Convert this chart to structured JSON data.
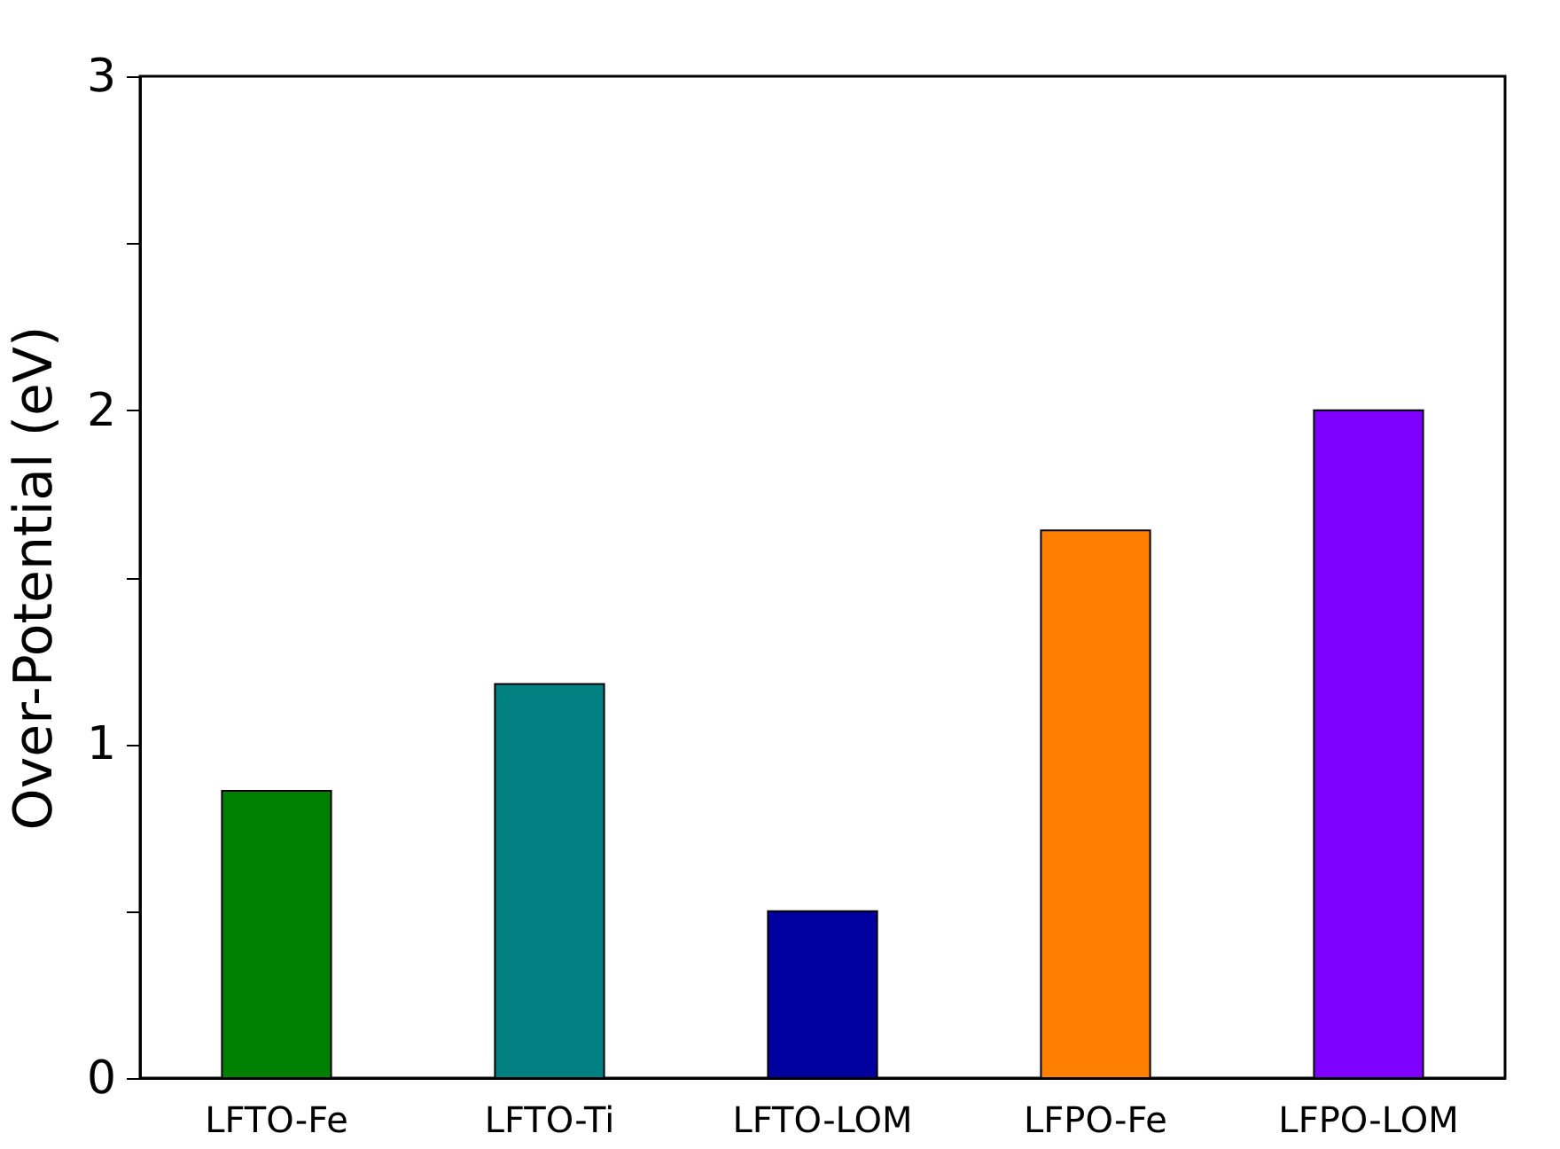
{
  "chart_data": {
    "type": "bar",
    "ylabel": "Over-Potential (eV)",
    "categories": [
      "LFTO-Fe",
      "LFTO-Ti",
      "LFTO-LOM",
      "LFPO-Fe",
      "LFPO-LOM"
    ],
    "values": [
      0.86,
      1.18,
      0.5,
      1.64,
      2.0
    ],
    "colors": [
      "#007f00",
      "#008080",
      "#00009f",
      "#ff7f00",
      "#7f00ff"
    ],
    "ylim": [
      0,
      3
    ],
    "yticks": [
      0,
      {
        "value": 0.5,
        "label": null
      },
      1,
      {
        "value": 1.5,
        "label": null
      },
      2,
      {
        "value": 2.5,
        "label": null
      },
      3
    ],
    "grid": false,
    "legend": false
  }
}
